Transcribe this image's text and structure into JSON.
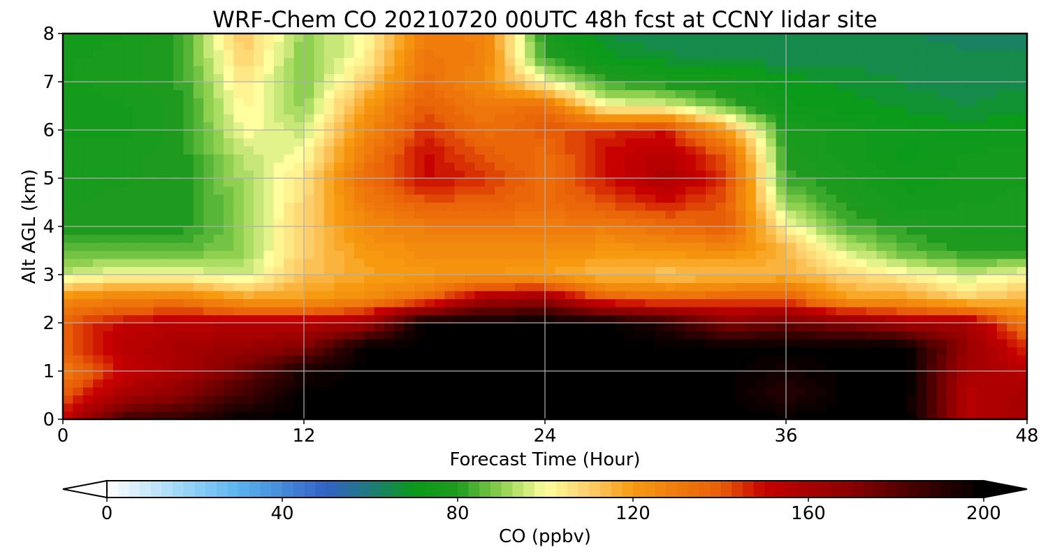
{
  "chart_data": {
    "type": "heatmap",
    "title": "WRF-Chem CO  20210720 00UTC 48h fcst at CCNY lidar site",
    "xlabel": "Forecast Time (Hour)",
    "ylabel": "Alt AGL (km)",
    "xlim": [
      0,
      48
    ],
    "ylim": [
      0,
      8
    ],
    "xticks": [
      "0",
      "12",
      "24",
      "36",
      "48"
    ],
    "yticks": [
      "0",
      "1",
      "2",
      "3",
      "4",
      "5",
      "6",
      "7",
      "8"
    ],
    "grid": true,
    "colorbar": {
      "label": "CO  (ppbv)",
      "range": [
        0,
        200
      ],
      "ticks": [
        "0",
        "40",
        "80",
        "120",
        "160",
        "200"
      ],
      "extend": "both",
      "stops": [
        {
          "value": 0,
          "color": "#ffffff"
        },
        {
          "value": 20,
          "color": "#8dcff5"
        },
        {
          "value": 30,
          "color": "#5bb3ef"
        },
        {
          "value": 50,
          "color": "#3262c6"
        },
        {
          "value": 60,
          "color": "#1e7a7a"
        },
        {
          "value": 70,
          "color": "#0b9a1a"
        },
        {
          "value": 80,
          "color": "#1e9b1e"
        },
        {
          "value": 90,
          "color": "#8fd050"
        },
        {
          "value": 100,
          "color": "#ffff9f"
        },
        {
          "value": 110,
          "color": "#fdce6a"
        },
        {
          "value": 120,
          "color": "#f79a10"
        },
        {
          "value": 140,
          "color": "#e85e08"
        },
        {
          "value": 150,
          "color": "#c70000"
        },
        {
          "value": 170,
          "color": "#880000"
        },
        {
          "value": 190,
          "color": "#2a0000"
        },
        {
          "value": 200,
          "color": "#000000"
        }
      ]
    },
    "x": [
      0,
      3,
      6,
      9,
      12,
      15,
      18,
      21,
      24,
      27,
      30,
      33,
      36,
      39,
      42,
      45,
      48
    ],
    "y": [
      0,
      0.5,
      1,
      1.5,
      2,
      2.5,
      3,
      3.5,
      4,
      4.5,
      5,
      5.5,
      6,
      6.5,
      7,
      7.5,
      8
    ],
    "z": [
      [
        150,
        185,
        190,
        200,
        200,
        200,
        200,
        200,
        200,
        200,
        200,
        200,
        200,
        200,
        200,
        155,
        160
      ],
      [
        140,
        160,
        170,
        185,
        200,
        200,
        200,
        200,
        200,
        200,
        200,
        200,
        190,
        200,
        200,
        155,
        160
      ],
      [
        130,
        150,
        160,
        175,
        195,
        200,
        200,
        200,
        200,
        200,
        200,
        200,
        195,
        200,
        200,
        160,
        155
      ],
      [
        140,
        155,
        160,
        165,
        170,
        200,
        200,
        200,
        200,
        200,
        200,
        200,
        200,
        200,
        200,
        165,
        145
      ],
      [
        140,
        150,
        155,
        155,
        155,
        160,
        200,
        200,
        200,
        200,
        190,
        170,
        175,
        170,
        160,
        160,
        130
      ],
      [
        125,
        130,
        130,
        120,
        120,
        125,
        135,
        160,
        165,
        140,
        135,
        140,
        140,
        120,
        120,
        110,
        115
      ],
      [
        95,
        100,
        100,
        95,
        112,
        118,
        120,
        122,
        118,
        113,
        112,
        112,
        115,
        108,
        102,
        95,
        100
      ],
      [
        85,
        85,
        85,
        90,
        110,
        120,
        125,
        125,
        125,
        122,
        122,
        125,
        115,
        96,
        85,
        80,
        80
      ],
      [
        80,
        80,
        80,
        90,
        110,
        125,
        130,
        130,
        130,
        130,
        135,
        140,
        102,
        84,
        80,
        78,
        78
      ],
      [
        78,
        80,
        80,
        90,
        108,
        130,
        140,
        140,
        135,
        142,
        148,
        140,
        90,
        80,
        75,
        76,
        77
      ],
      [
        78,
        78,
        80,
        92,
        105,
        135,
        150,
        145,
        135,
        148,
        158,
        145,
        82,
        78,
        72,
        75,
        76
      ],
      [
        78,
        78,
        80,
        95,
        100,
        130,
        150,
        140,
        135,
        150,
        155,
        140,
        80,
        75,
        70,
        74,
        75
      ],
      [
        75,
        75,
        80,
        100,
        95,
        125,
        145,
        135,
        140,
        145,
        148,
        120,
        78,
        75,
        72,
        70,
        72
      ],
      [
        75,
        76,
        80,
        102,
        90,
        120,
        140,
        130,
        135,
        100,
        98,
        85,
        72,
        70,
        68,
        66,
        68
      ],
      [
        76,
        77,
        82,
        105,
        88,
        110,
        135,
        125,
        100,
        82,
        78,
        76,
        70,
        68,
        66,
        65,
        66
      ],
      [
        76,
        77,
        82,
        110,
        88,
        102,
        132,
        128,
        82,
        70,
        67,
        65,
        65,
        65,
        65,
        64,
        64
      ],
      [
        75,
        76,
        82,
        112,
        90,
        100,
        130,
        128,
        78,
        66,
        64,
        64,
        64,
        64,
        64,
        63,
        63
      ]
    ]
  }
}
